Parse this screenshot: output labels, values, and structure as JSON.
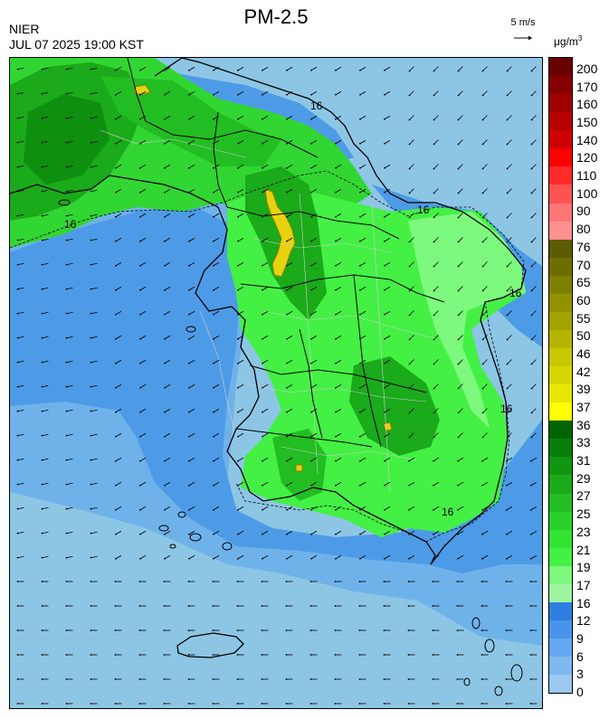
{
  "header": {
    "agency": "NIER",
    "timestamp": "JUL 07 2025 19:00 KST",
    "title": "PM-2.5"
  },
  "wind_reference": {
    "label": "5 m/s",
    "arrow_glyph": "→"
  },
  "colorbar": {
    "unit_base": "μg/m",
    "unit_exponent": "3",
    "labels": [
      "200",
      "170",
      "160",
      "150",
      "140",
      "120",
      "110",
      "100",
      "90",
      "80",
      "76",
      "70",
      "65",
      "60",
      "55",
      "50",
      "46",
      "42",
      "39",
      "37",
      "36",
      "33",
      "31",
      "29",
      "27",
      "25",
      "23",
      "21",
      "19",
      "17",
      "16",
      "12",
      "9",
      "6",
      "3",
      "0"
    ],
    "colors": [
      "#6b0000",
      "#850000",
      "#a00000",
      "#b80000",
      "#d00000",
      "#ff0000",
      "#ff2a2a",
      "#ff5353",
      "#ff7575",
      "#ff9090",
      "#5c5c00",
      "#6e6e00",
      "#808000",
      "#929200",
      "#a3a300",
      "#b5b500",
      "#c7c700",
      "#d6d600",
      "#e6e600",
      "#ffff00",
      "#006400",
      "#087d08",
      "#119611",
      "#1aaa1a",
      "#22bd22",
      "#2ad02a",
      "#32e332",
      "#44f044",
      "#7dfa7d",
      "#9ff59f",
      "#2f7fe0",
      "#4994ea",
      "#65a7ee",
      "#7db8ef",
      "#9ac8f0"
    ]
  },
  "map": {
    "contour_labels": [
      "16",
      "16",
      "16",
      "16",
      "16",
      "16"
    ],
    "marker_colors": {
      "hotspot": "#e6d30e",
      "hotspot_edge": "#8a7d00",
      "coast": "#000000",
      "admin": "#c8c8c8",
      "province": "#000000"
    }
  }
}
